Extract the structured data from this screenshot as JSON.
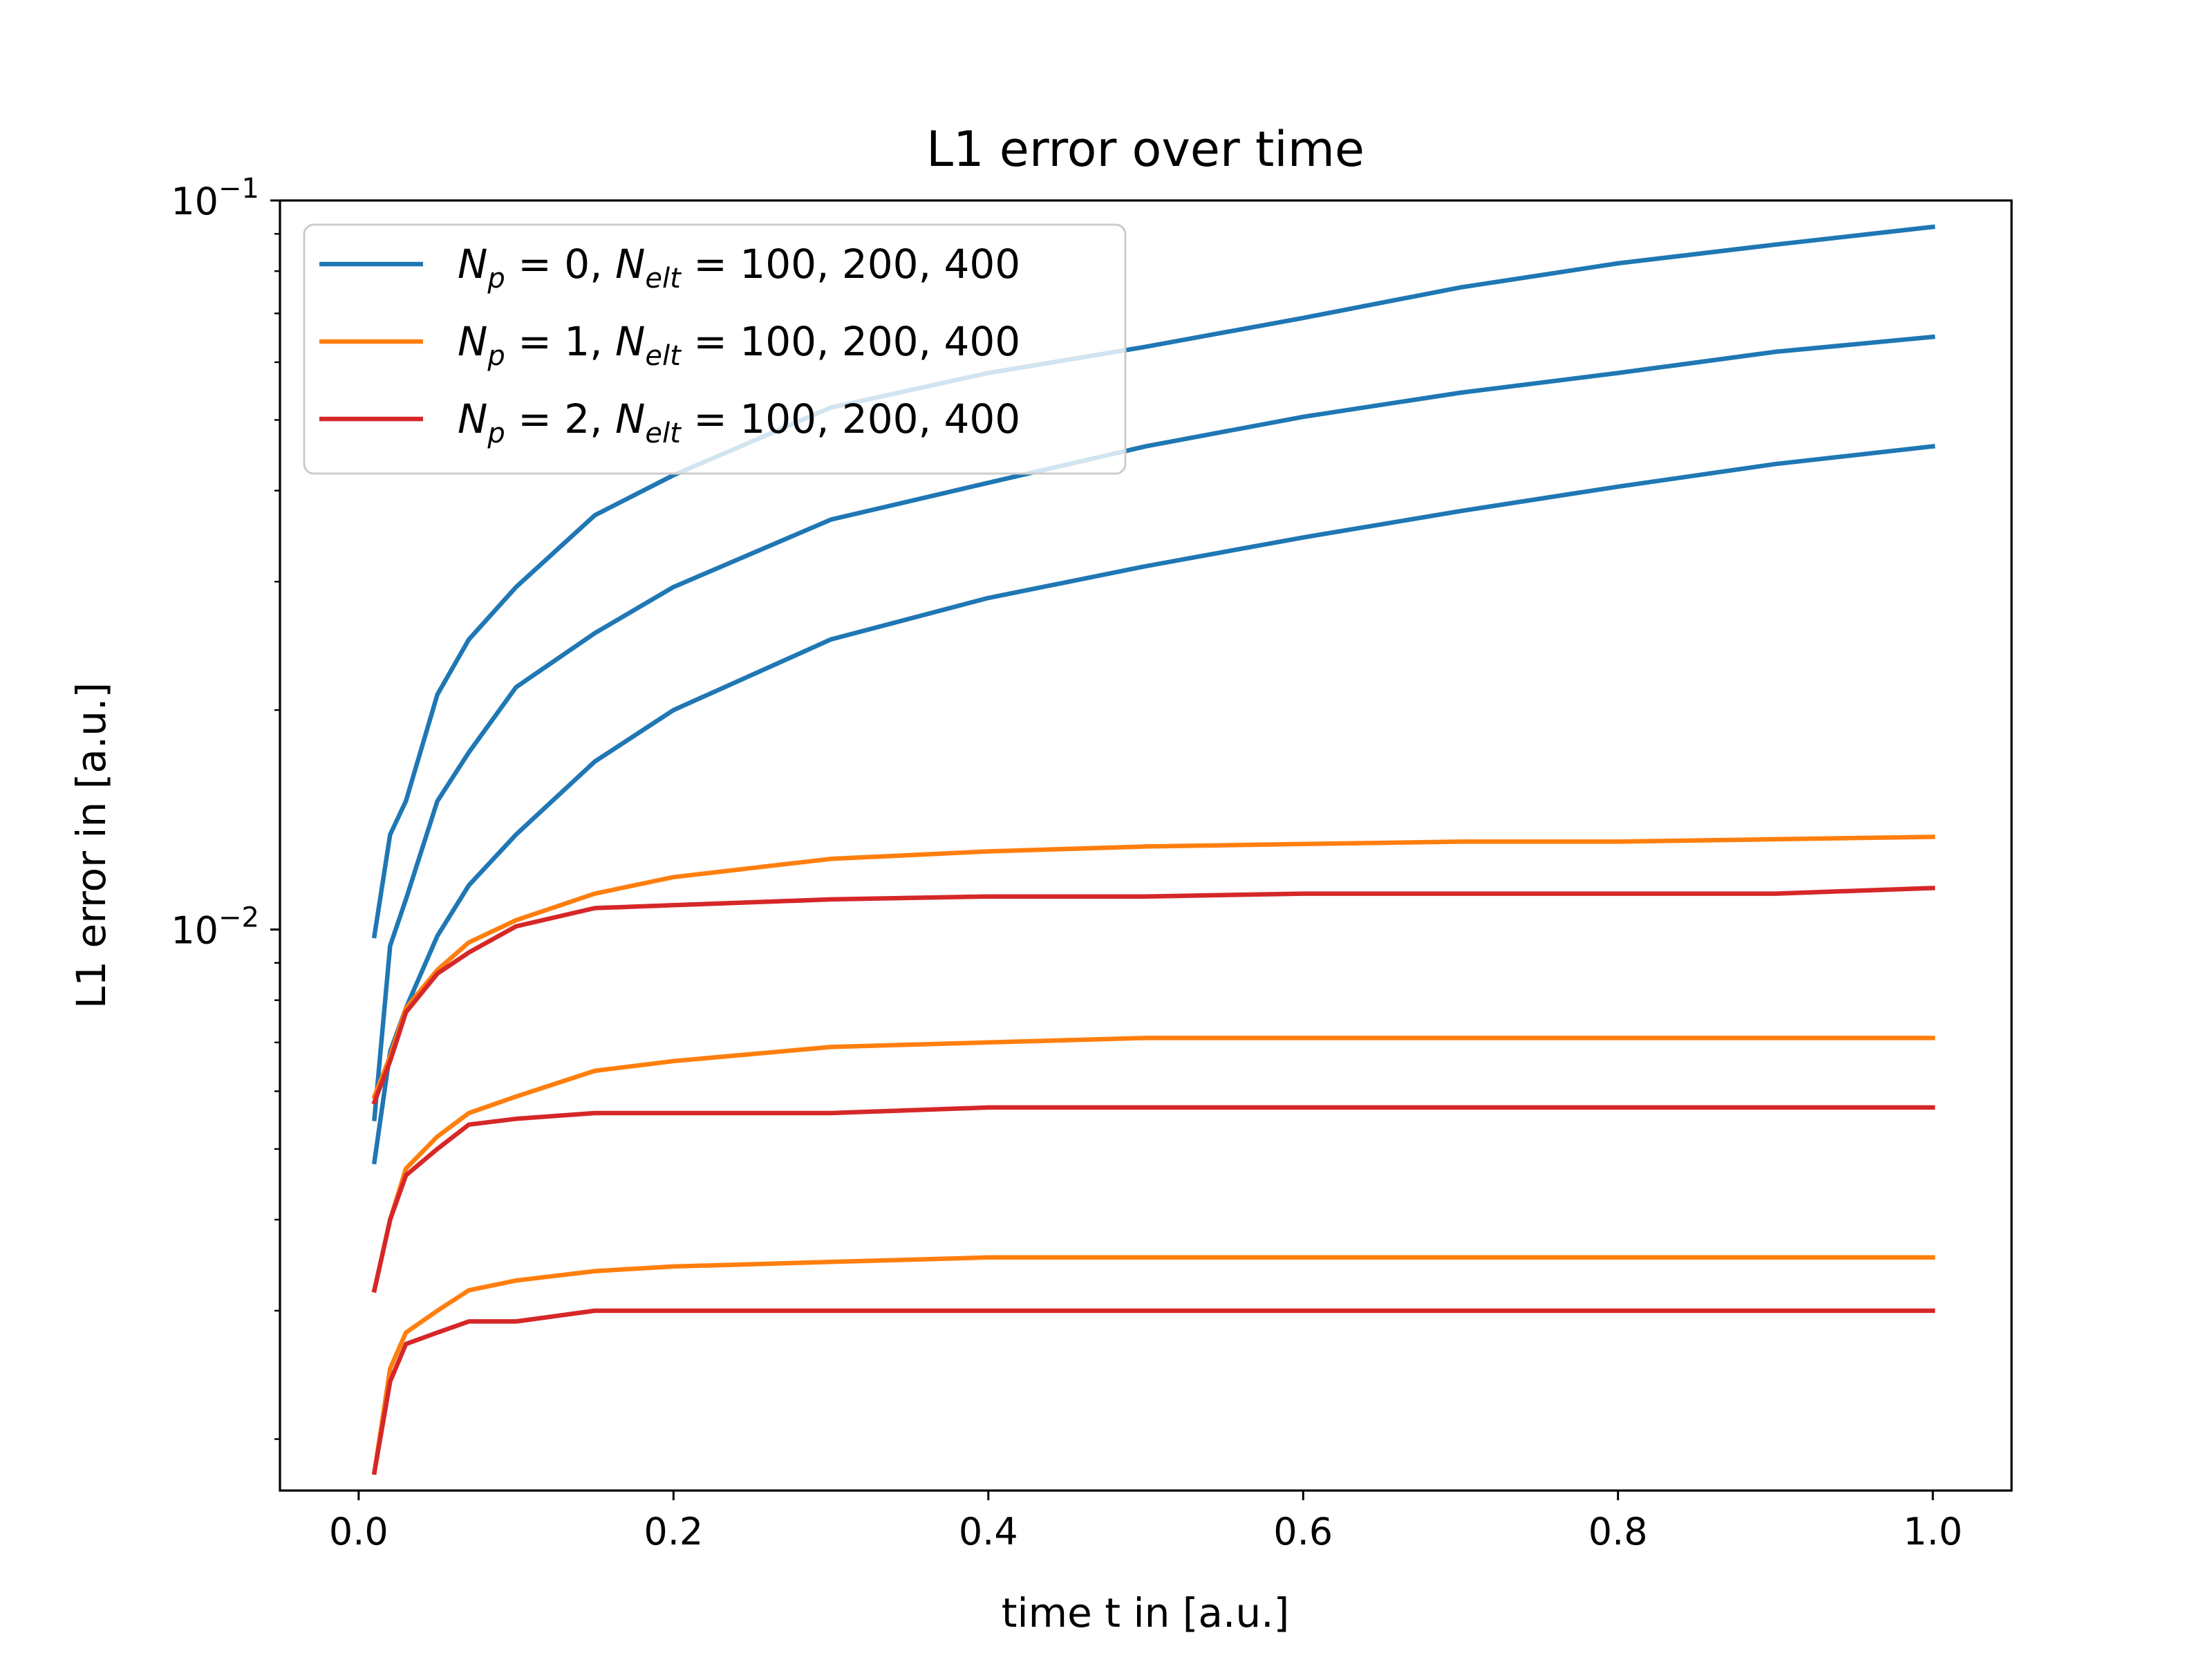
{
  "chart_data": {
    "type": "line",
    "title": "L1 error over time",
    "xlabel": "time t in [a.u.]",
    "ylabel": "L1 error in [a.u.]",
    "xlim": [
      -0.05,
      1.05
    ],
    "ylim": [
      0.0017,
      0.1
    ],
    "yscale": "log",
    "grid": false,
    "legend_position": "top-left",
    "x_ticks": [
      "0.0",
      "0.2",
      "0.4",
      "0.6",
      "0.8",
      "1.0"
    ],
    "y_ticks": [
      {
        "base": "10",
        "exp": "−1",
        "value": 0.1
      },
      {
        "base": "10",
        "exp": "−2",
        "value": 0.01
      }
    ],
    "legend": [
      {
        "label": "N_p = 0, N_elt = 100, 200, 400",
        "Np": "0",
        "values": "100, 200, 400",
        "color": "#1f77b4"
      },
      {
        "label": "N_p = 1, N_elt = 100, 200, 400",
        "Np": "1",
        "values": "100, 200, 400",
        "color": "#ff7f0e"
      },
      {
        "label": "N_p = 2, N_elt = 100, 200, 400",
        "Np": "2",
        "values": "100, 200, 400",
        "color": "#d62728"
      }
    ],
    "series": [
      {
        "group": "N_p = 0",
        "color": "#1f77b4",
        "x": [
          0.01,
          0.02,
          0.03,
          0.05,
          0.07,
          0.1,
          0.15,
          0.2,
          0.3,
          0.4,
          0.5,
          0.6,
          0.7,
          0.8,
          0.9,
          1.0
        ],
        "y": [
          0.0098,
          0.0135,
          0.015,
          0.021,
          0.025,
          0.0295,
          0.037,
          0.042,
          0.052,
          0.058,
          0.063,
          0.069,
          0.076,
          0.082,
          0.087,
          0.092
        ]
      },
      {
        "group": "N_p = 0",
        "color": "#1f77b4",
        "x": [
          0.01,
          0.02,
          0.03,
          0.05,
          0.07,
          0.1,
          0.15,
          0.2,
          0.3,
          0.4,
          0.5,
          0.6,
          0.7,
          0.8,
          0.9,
          1.0
        ],
        "y": [
          0.0055,
          0.0095,
          0.011,
          0.015,
          0.0175,
          0.0215,
          0.0255,
          0.0295,
          0.0365,
          0.041,
          0.046,
          0.0505,
          0.0545,
          0.058,
          0.062,
          0.065
        ]
      },
      {
        "group": "N_p = 0",
        "color": "#1f77b4",
        "x": [
          0.01,
          0.02,
          0.03,
          0.05,
          0.07,
          0.1,
          0.15,
          0.2,
          0.3,
          0.4,
          0.5,
          0.6,
          0.7,
          0.8,
          0.9,
          1.0
        ],
        "y": [
          0.0048,
          0.0068,
          0.0078,
          0.0098,
          0.0115,
          0.0135,
          0.017,
          0.02,
          0.025,
          0.0285,
          0.0315,
          0.0345,
          0.0375,
          0.0405,
          0.0435,
          0.046
        ]
      },
      {
        "group": "N_p = 1",
        "color": "#ff7f0e",
        "x": [
          0.01,
          0.02,
          0.03,
          0.05,
          0.07,
          0.1,
          0.15,
          0.2,
          0.3,
          0.4,
          0.5,
          0.6,
          0.7,
          0.8,
          0.9,
          1.0
        ],
        "y": [
          0.0059,
          0.0067,
          0.0078,
          0.0088,
          0.0096,
          0.0103,
          0.0112,
          0.0118,
          0.0125,
          0.0128,
          0.013,
          0.0131,
          0.0132,
          0.0132,
          0.0133,
          0.0134
        ]
      },
      {
        "group": "N_p = 1",
        "color": "#ff7f0e",
        "x": [
          0.01,
          0.02,
          0.03,
          0.05,
          0.07,
          0.1,
          0.15,
          0.2,
          0.3,
          0.4,
          0.5,
          0.6,
          0.7,
          0.8,
          0.9,
          1.0
        ],
        "y": [
          0.0032,
          0.004,
          0.0047,
          0.0052,
          0.0056,
          0.0059,
          0.0064,
          0.0066,
          0.0069,
          0.007,
          0.0071,
          0.0071,
          0.0071,
          0.0071,
          0.0071,
          0.0071
        ]
      },
      {
        "group": "N_p = 1",
        "color": "#ff7f0e",
        "x": [
          0.01,
          0.02,
          0.03,
          0.05,
          0.07,
          0.1,
          0.15,
          0.2,
          0.3,
          0.4,
          0.5,
          0.6,
          0.7,
          0.8,
          0.9,
          1.0
        ],
        "y": [
          0.0018,
          0.0025,
          0.0028,
          0.003,
          0.0032,
          0.0033,
          0.0034,
          0.00345,
          0.0035,
          0.00355,
          0.00355,
          0.00355,
          0.00355,
          0.00355,
          0.00355,
          0.00355
        ]
      },
      {
        "group": "N_p = 2",
        "color": "#d62728",
        "x": [
          0.01,
          0.02,
          0.03,
          0.05,
          0.07,
          0.1,
          0.15,
          0.2,
          0.3,
          0.4,
          0.5,
          0.6,
          0.7,
          0.8,
          0.9,
          1.0
        ],
        "y": [
          0.0058,
          0.0066,
          0.0077,
          0.0087,
          0.0093,
          0.0101,
          0.0107,
          0.0108,
          0.011,
          0.0111,
          0.0111,
          0.0112,
          0.0112,
          0.0112,
          0.0112,
          0.0114
        ]
      },
      {
        "group": "N_p = 2",
        "color": "#d62728",
        "x": [
          0.01,
          0.02,
          0.03,
          0.05,
          0.07,
          0.1,
          0.15,
          0.2,
          0.3,
          0.4,
          0.5,
          0.6,
          0.7,
          0.8,
          0.9,
          1.0
        ],
        "y": [
          0.0032,
          0.004,
          0.0046,
          0.005,
          0.0054,
          0.0055,
          0.0056,
          0.0056,
          0.0056,
          0.0057,
          0.0057,
          0.0057,
          0.0057,
          0.0057,
          0.0057,
          0.0057
        ]
      },
      {
        "group": "N_p = 2",
        "color": "#d62728",
        "x": [
          0.01,
          0.02,
          0.03,
          0.05,
          0.07,
          0.1,
          0.15,
          0.2,
          0.3,
          0.4,
          0.5,
          0.6,
          0.7,
          0.8,
          0.9,
          1.0
        ],
        "y": [
          0.0018,
          0.0024,
          0.0027,
          0.0028,
          0.0029,
          0.0029,
          0.003,
          0.003,
          0.003,
          0.003,
          0.003,
          0.003,
          0.003,
          0.003,
          0.003,
          0.003
        ]
      }
    ]
  }
}
